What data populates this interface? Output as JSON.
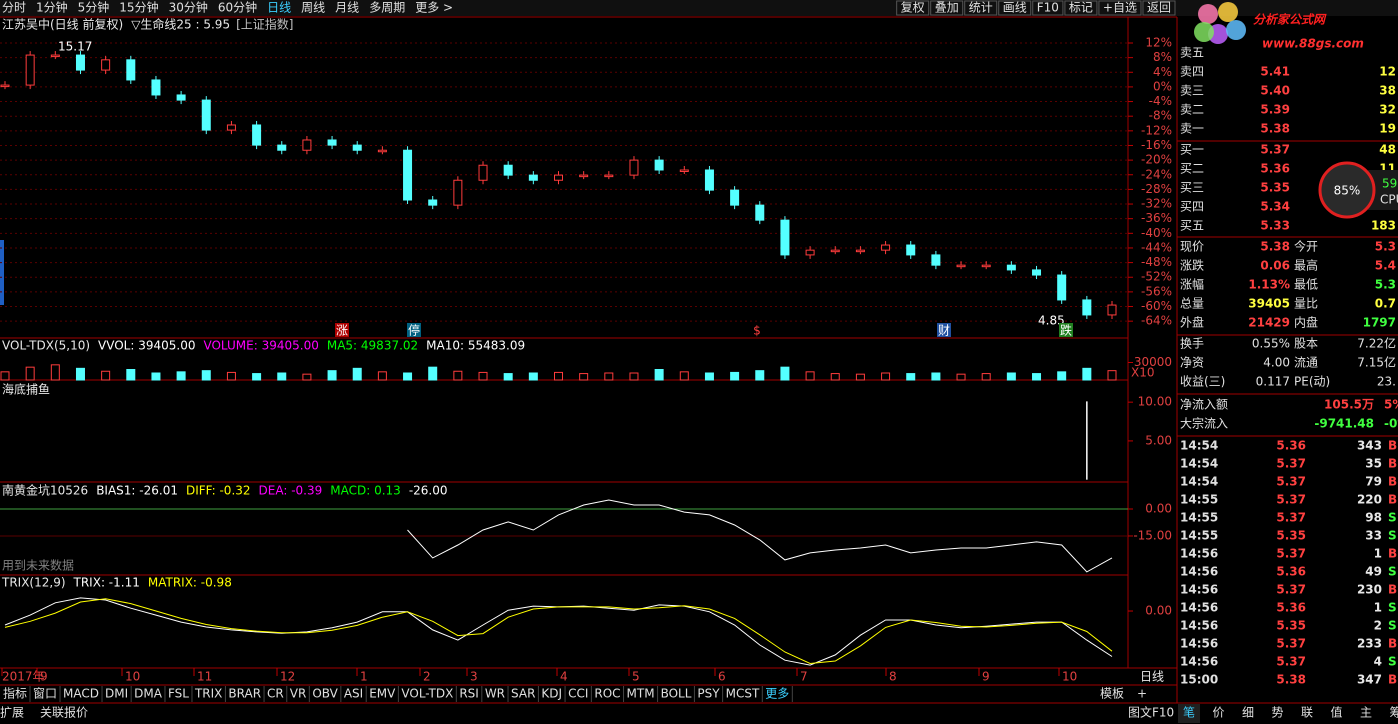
{
  "menu": {
    "left": [
      "分时",
      "1分钟",
      "5分钟",
      "15分钟",
      "30分钟",
      "60分钟",
      "日线",
      "周线",
      "月线",
      "多周期",
      "更多 >"
    ],
    "right": [
      "复权",
      "叠加",
      "统计",
      "画线",
      "F10",
      "标记",
      "+自选",
      "返回"
    ]
  },
  "logo": {
    "title": "分析家公式网",
    "url": "www.88gs.com"
  },
  "cpu": {
    "percent": "85%",
    "side_value": "59",
    "label": "CPU"
  },
  "chart_data": [
    {
      "type": "candlestick",
      "title": "江苏吴中(日线 前复权)",
      "indicator": "▽生命线25 : 5.95",
      "overlay": "[上证指数]",
      "up_color": "#ff3c3c",
      "down_color": "#54ffff",
      "values": [
        0.5,
        8.7,
        8.7,
        4.6,
        7.4,
        1.9,
        -2.2,
        -3.6,
        -11.8,
        -10.4,
        -15.9,
        -17.3,
        -14.5,
        -15.9,
        -17.3,
        -17.3,
        -30.9,
        -32.3,
        -25.5,
        -21.4,
        -24.1,
        -25.5,
        -24.1,
        -24.1,
        -24.1,
        -20.0,
        -22.7,
        -22.7,
        -28.2,
        -32.3,
        -36.4,
        -45.9,
        -44.6,
        -44.6,
        -44.6,
        -43.2,
        -45.9,
        -48.7,
        -48.7,
        -48.7,
        -50.0,
        -51.4,
        -58.2,
        -62.3,
        -59.6
      ],
      "ylim": [
        -68.6,
        19.1
      ],
      "yticks": [
        {
          "value": 12,
          "label": "12%"
        },
        {
          "value": 8,
          "label": "8%"
        },
        {
          "value": 4,
          "label": "4%"
        },
        {
          "value": 0,
          "label": "0%"
        },
        {
          "value": -4,
          "label": "-4%"
        },
        {
          "value": -8,
          "label": "-8%"
        },
        {
          "value": -12,
          "label": "-12%"
        },
        {
          "value": -16,
          "label": "-16%"
        },
        {
          "value": -20,
          "label": "-20%"
        },
        {
          "value": -24,
          "label": "-24%"
        },
        {
          "value": -28,
          "label": "-28%"
        },
        {
          "value": -32,
          "label": "-32%"
        },
        {
          "value": -36,
          "label": "-36%"
        },
        {
          "value": -40,
          "label": "-40%"
        },
        {
          "value": -44,
          "label": "-44%"
        },
        {
          "value": -48,
          "label": "-48%"
        },
        {
          "value": -52,
          "label": "-52%"
        },
        {
          "value": -56,
          "label": "-56%"
        },
        {
          "value": -60,
          "label": "-60%"
        },
        {
          "value": -64,
          "label": "-64%"
        }
      ],
      "grid": true,
      "annotations": [
        "15.17",
        "4.85"
      ],
      "markers": [
        "涨",
        "停",
        "$",
        "财",
        "跌"
      ]
    },
    {
      "type": "bar",
      "title": "VOL-TDX(5,10)",
      "legend": [
        "VVOL: 39405.00",
        "VOLUME: 39405.00",
        "MA5: 49837.02",
        "MA10: 55483.09"
      ],
      "legend_colors": [
        "#ffffff",
        "#ff00ff",
        "#00ff00",
        "#ffffff"
      ],
      "values": [
        14000,
        22000,
        26000,
        20000,
        15000,
        18000,
        12000,
        14000,
        16000,
        13000,
        11000,
        12000,
        10000,
        16000,
        20000,
        14000,
        12000,
        22000,
        15000,
        13000,
        11000,
        12000,
        13000,
        11000,
        12000,
        12000,
        18000,
        14000,
        12000,
        13000,
        16000,
        22000,
        14000,
        11000,
        10000,
        12000,
        11000,
        12000,
        10000,
        11000,
        12000,
        11000,
        14000,
        20000,
        16000
      ],
      "ylim": [
        0,
        48000
      ],
      "yticks": [
        30000
      ],
      "scale_label": "X10"
    },
    {
      "type": "bar",
      "title": "海底捕鱼",
      "color": "#ffffff",
      "values": [
        null,
        null,
        null,
        null,
        null,
        null,
        null,
        null,
        null,
        null,
        null,
        null,
        null,
        null,
        null,
        null,
        null,
        null,
        null,
        null,
        null,
        null,
        null,
        null,
        null,
        null,
        null,
        null,
        null,
        null,
        null,
        null,
        null,
        null,
        null,
        null,
        null,
        null,
        null,
        null,
        null,
        null,
        null,
        10.1,
        null
      ],
      "ylim": [
        -0.3,
        12.6
      ],
      "yticks": [
        {
          "value": 10,
          "label": "10.00"
        },
        {
          "value": 5,
          "label": "5.00"
        }
      ]
    },
    {
      "type": "line",
      "title": "南黄金坑10526",
      "legend": [
        "BIAS1: -26.01",
        "DIFF: -0.32",
        "DEA: -0.39",
        "MACD: 0.13",
        "-26.00"
      ],
      "legend_colors": [
        "#ffffff",
        "#ffff00",
        "#ff00ff",
        "#00ff00",
        "#ffffff"
      ],
      "note": "用到未来数据",
      "color": "#ffffff",
      "values": [
        null,
        null,
        null,
        null,
        null,
        null,
        null,
        null,
        null,
        null,
        null,
        null,
        null,
        null,
        null,
        null,
        -11.7,
        -27.2,
        -20,
        -11.7,
        -7.2,
        -11.7,
        -3.3,
        2.2,
        5,
        2.2,
        2.2,
        -1.7,
        -3.3,
        -8.9,
        -17.2,
        -28.3,
        -24.4,
        -22.8,
        -21.7,
        -20,
        -24.4,
        -22.8,
        -21.7,
        -21.7,
        -20,
        -18.3,
        -20,
        -35,
        -27.2
      ],
      "ylim": [
        -36.7,
        13.9
      ],
      "yticks": [
        {
          "value": 0,
          "label": "0.00"
        },
        {
          "value": -15,
          "label": "-15.00"
        }
      ]
    },
    {
      "type": "line",
      "title": "TRIX(12,9)",
      "legend": [
        "TRIX: -1.11",
        "MATRIX: -0.98"
      ],
      "legend_colors": [
        "#ffffff",
        "#ffff00"
      ],
      "series": [
        {
          "color": "#ffffff",
          "values": [
            -0.34,
            -0.1,
            0.2,
            0.32,
            0.27,
            0.07,
            -0.1,
            -0.27,
            -0.39,
            -0.46,
            -0.51,
            -0.54,
            -0.51,
            -0.41,
            -0.27,
            -0.02,
            -0.02,
            -0.46,
            -0.71,
            -0.34,
            0.02,
            0.12,
            0.1,
            0.12,
            0.07,
            0.02,
            0.15,
            0.12,
            -0.02,
            -0.34,
            -0.83,
            -1.2,
            -1.32,
            -1.07,
            -0.59,
            -0.22,
            -0.22,
            -0.34,
            -0.41,
            -0.37,
            -0.32,
            -0.27,
            -0.27,
            -0.71,
            -1.11
          ]
        },
        {
          "color": "#ffff00",
          "values": [
            -0.4,
            -0.25,
            -0.05,
            0.22,
            0.3,
            0.18,
            0,
            -0.18,
            -0.33,
            -0.43,
            -0.49,
            -0.53,
            -0.53,
            -0.47,
            -0.35,
            -0.15,
            -0.02,
            -0.25,
            -0.6,
            -0.55,
            -0.15,
            0.05,
            0.1,
            0.1,
            0.1,
            0.05,
            0.08,
            0.13,
            0.05,
            -0.18,
            -0.58,
            -1.0,
            -1.28,
            -1.22,
            -0.85,
            -0.4,
            -0.22,
            -0.28,
            -0.37,
            -0.39,
            -0.35,
            -0.3,
            -0.27,
            -0.5,
            -0.98
          ]
        }
      ],
      "ylim": [
        -1.39,
        0.83
      ],
      "yticks": [
        {
          "value": 0,
          "label": "0.00"
        }
      ]
    }
  ],
  "date_axis": {
    "labels": [
      "2017年",
      "9",
      "10",
      "11",
      "12",
      "1",
      "2",
      "3",
      "4",
      "5",
      "6",
      "7",
      "8",
      "9",
      "10"
    ],
    "period": "日线"
  },
  "indicator_tabs": {
    "items": [
      "指标",
      "窗口",
      "MACD",
      "DMI",
      "DMA",
      "FSL",
      "TRIX",
      "BRAR",
      "CR",
      "VR",
      "OBV",
      "ASI",
      "EMV",
      "VOL-TDX",
      "RSI",
      "WR",
      "SAR",
      "KDJ",
      "CCI",
      "ROC",
      "MTM",
      "BOLL",
      "PSY",
      "MCST",
      "更多"
    ],
    "template": "模板",
    "plus": "+"
  },
  "quote": {
    "sells": [
      {
        "label": "卖五"
      },
      {
        "label": "卖四",
        "price": "5.41",
        "volume": "12"
      },
      {
        "label": "卖三",
        "price": "5.40",
        "volume": "38"
      },
      {
        "label": "卖二",
        "price": "5.39",
        "volume": "32"
      },
      {
        "label": "卖一",
        "price": "5.38",
        "volume": "19"
      }
    ],
    "buys": [
      {
        "label": "买一",
        "price": "5.37",
        "volume": "48"
      },
      {
        "label": "买二",
        "price": "5.36",
        "volume": "11"
      },
      {
        "label": "买三",
        "price": "5.35"
      },
      {
        "label": "买四",
        "price": "5.34"
      },
      {
        "label": "买五",
        "price": "5.33",
        "volume": "183"
      }
    ],
    "stats": [
      [
        "现价",
        "5.38",
        "今开",
        "5.3"
      ],
      [
        "涨跌",
        "0.06",
        "最高",
        "5.4"
      ],
      [
        "涨幅",
        "1.13%",
        "最低",
        "5.3"
      ],
      [
        "总量",
        "39405",
        "量比",
        "0.7"
      ],
      [
        "外盘",
        "21429",
        "内盘",
        "1797"
      ]
    ],
    "stats2": [
      [
        "换手",
        "0.55%",
        "股本",
        "7.22亿"
      ],
      [
        "净资",
        "4.00",
        "流通",
        "7.15亿"
      ],
      [
        "收益(三)",
        "0.117",
        "PE(动)",
        "23."
      ]
    ],
    "flow": [
      [
        "净流入额",
        "105.5万",
        "5%"
      ],
      [
        "大宗流入",
        "-9741.48",
        "-0%"
      ]
    ],
    "ticks": [
      [
        "14:54",
        "5.36",
        "343",
        "B"
      ],
      [
        "14:54",
        "5.37",
        "35",
        "B"
      ],
      [
        "14:54",
        "5.37",
        "79",
        "B"
      ],
      [
        "14:55",
        "5.37",
        "220",
        "B"
      ],
      [
        "14:55",
        "5.37",
        "98",
        "S"
      ],
      [
        "14:55",
        "5.35",
        "33",
        "S"
      ],
      [
        "14:56",
        "5.37",
        "1",
        "B"
      ],
      [
        "14:56",
        "5.36",
        "49",
        "S"
      ],
      [
        "14:56",
        "5.37",
        "230",
        "B"
      ],
      [
        "14:56",
        "5.36",
        "1",
        "S"
      ],
      [
        "14:56",
        "5.35",
        "2",
        "S"
      ],
      [
        "14:56",
        "5.37",
        "233",
        "B"
      ],
      [
        "14:56",
        "5.37",
        "4",
        "S"
      ],
      [
        "15:00",
        "5.38",
        "347",
        "B"
      ]
    ]
  },
  "bottom": {
    "left": [
      "扩展",
      "关联报价"
    ],
    "right_label": "图文F10",
    "tabs": [
      "笔",
      "价",
      "细",
      "势",
      "联",
      "值",
      "主",
      "筹"
    ]
  }
}
